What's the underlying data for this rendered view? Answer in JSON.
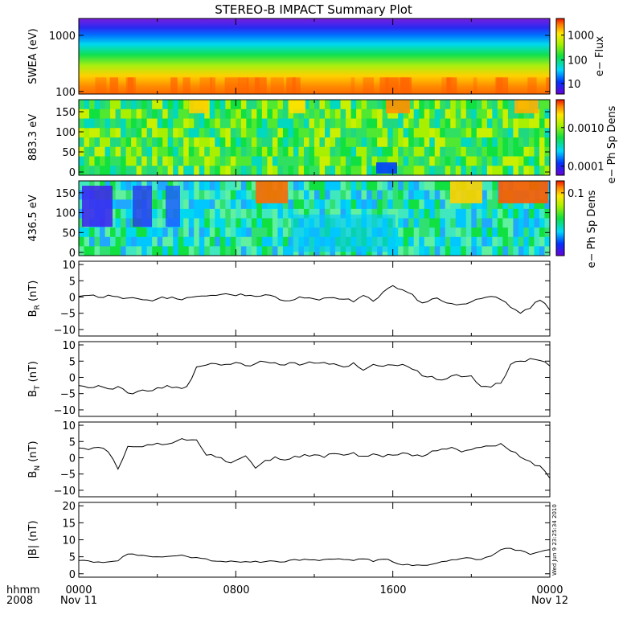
{
  "title": "STEREO-B IMPACT Summary Plot",
  "x_axis": {
    "ticks": [
      "0000",
      "0800",
      "1600",
      "0000"
    ],
    "date_ticks": [
      "Nov 11",
      "Nov 12"
    ],
    "corner_top": "hhmm",
    "corner_bottom": "2008"
  },
  "timestamp": "Wed Jun  9 23:25:34 2010",
  "chart_data": [
    {
      "type": "heatmap",
      "ylabel": "SWEA (eV)",
      "yscale": "log",
      "ylim": [
        90,
        2000
      ],
      "yticks": [
        "1000",
        "100"
      ],
      "colorbar": {
        "label": "e− Flux",
        "ticks": [
          "1000",
          "100",
          "10"
        ],
        "scale": "log"
      }
    },
    {
      "type": "heatmap",
      "ylabel": "883.3 eV",
      "ylim": [
        -8,
        180
      ],
      "yticks": [
        "150",
        "100",
        "50",
        "0"
      ],
      "colorbar": {
        "label": "e− Ph Sp Dens",
        "ticks": [
          "0.0010",
          "0.0001"
        ],
        "scale": "log"
      }
    },
    {
      "type": "heatmap",
      "ylabel": "436.5 eV",
      "ylim": [
        -8,
        180
      ],
      "yticks": [
        "150",
        "100",
        "50",
        "0"
      ],
      "colorbar": {
        "label": "e− Ph Sp Dens",
        "ticks": [
          "0.1"
        ],
        "scale": "log"
      }
    },
    {
      "type": "line",
      "ylabel": {
        "main": "B",
        "sub": "R",
        "unit": " (nT)"
      },
      "ylim": [
        -12,
        11
      ],
      "yticks": [
        "10",
        "5",
        "0",
        "−5",
        "−10"
      ],
      "xlim": [
        0,
        24
      ],
      "x": [
        0,
        0.5,
        1,
        1.5,
        2,
        2.5,
        3,
        3.5,
        4,
        4.5,
        5,
        5.5,
        6,
        6.5,
        7,
        7.5,
        8,
        8.5,
        9,
        9.5,
        10,
        10.5,
        11,
        11.5,
        12,
        12.5,
        13,
        13.5,
        14,
        14.5,
        15,
        15.5,
        16,
        16.5,
        17,
        17.5,
        18,
        18.5,
        19,
        19.5,
        20,
        20.5,
        21,
        21.5,
        22,
        22.5,
        23,
        23.5,
        24
      ],
      "y": [
        0.2,
        0.5,
        -0.1,
        0.6,
        0.1,
        -0.3,
        -0.5,
        -0.9,
        -0.6,
        -0.5,
        -0.6,
        -0.2,
        0.2,
        0.3,
        0.5,
        1,
        0.4,
        0.4,
        0.2,
        0.7,
        0.1,
        -1.2,
        -0.8,
        -0.3,
        -0.6,
        -0.3,
        -0.2,
        -0.7,
        -1.5,
        0.5,
        -1.3,
        1.5,
        3.5,
        2.2,
        0.8,
        -1.8,
        -0.6,
        -1.2,
        -2,
        -2.2,
        -1.5,
        -0.5,
        0.2,
        -0.8,
        -3.2,
        -5,
        -3.5,
        -1,
        -4
      ]
    },
    {
      "type": "line",
      "ylabel": {
        "main": "B",
        "sub": "T",
        "unit": " (nT)"
      },
      "ylim": [
        -12,
        11
      ],
      "yticks": [
        "10",
        "5",
        "0",
        "−5",
        "−10"
      ],
      "xlim": [
        0,
        24
      ],
      "x": [
        0,
        0.5,
        1,
        1.5,
        2,
        2.5,
        3,
        3.5,
        4,
        4.5,
        5,
        5.5,
        6,
        6.5,
        7,
        7.5,
        8,
        8.5,
        9,
        9.5,
        10,
        10.5,
        11,
        11.5,
        12,
        12.5,
        13,
        13.5,
        14,
        14.5,
        15,
        15.5,
        16,
        16.5,
        17,
        17.5,
        18,
        18.5,
        19,
        19.5,
        20,
        20.5,
        21,
        21.5,
        22,
        22.5,
        23,
        23.5,
        24
      ],
      "y": [
        -2.5,
        -3.2,
        -2.5,
        -3.5,
        -2.8,
        -4.8,
        -4.3,
        -4.2,
        -3.2,
        -2.5,
        -3,
        -2.8,
        3.2,
        3.8,
        4.2,
        4,
        4.6,
        3.6,
        4.2,
        4.8,
        4.5,
        3.8,
        4.5,
        4.2,
        4.4,
        4.6,
        4.2,
        3.2,
        4.5,
        2.2,
        4,
        3.4,
        3.8,
        4,
        2.5,
        0.5,
        0.3,
        -0.8,
        0.5,
        0.2,
        0.5,
        -2.8,
        -3,
        -1.8,
        4,
        5,
        5.8,
        5.2,
        3.5
      ]
    },
    {
      "type": "line",
      "ylabel": {
        "main": "B",
        "sub": "N",
        "unit": " (nT)"
      },
      "ylim": [
        -12,
        11
      ],
      "yticks": [
        "10",
        "5",
        "0",
        "−5",
        "−10"
      ],
      "xlim": [
        0,
        24
      ],
      "x": [
        0,
        0.5,
        1,
        1.5,
        2,
        2.5,
        3,
        3.5,
        4,
        4.5,
        5,
        5.5,
        6,
        6.5,
        7,
        7.5,
        8,
        8.5,
        9,
        9.5,
        10,
        10.5,
        11,
        11.5,
        12,
        12.5,
        13,
        13.5,
        14,
        14.5,
        15,
        15.5,
        16,
        16.5,
        17,
        17.5,
        18,
        18.5,
        19,
        19.5,
        20,
        20.5,
        21,
        21.5,
        22,
        22.5,
        23,
        23.5,
        24
      ],
      "y": [
        3,
        2.5,
        3.2,
        1.8,
        -3.5,
        3.5,
        3.4,
        4,
        4.5,
        4.2,
        5.2,
        5.4,
        5.5,
        0.8,
        0.2,
        -1.2,
        -0.8,
        0.6,
        -3.2,
        -0.8,
        0.3,
        -0.7,
        0.5,
        1,
        0.9,
        0.1,
        1.3,
        0.8,
        1.6,
        0.5,
        1.2,
        0.3,
        0.8,
        1.5,
        0.6,
        0.4,
        2.1,
        2.7,
        3.2,
        1.8,
        2.5,
        3.2,
        3.6,
        4.4,
        2.1,
        0.2,
        -1.1,
        -2.5,
        -6.3
      ]
    },
    {
      "type": "line",
      "ylabel": {
        "main": "|B|",
        "sub": "",
        "unit": " (nT)"
      },
      "ylim": [
        -1,
        21
      ],
      "yticks": [
        "20",
        "15",
        "10",
        "5",
        "0"
      ],
      "xlim": [
        0,
        24
      ],
      "x": [
        0,
        0.5,
        1,
        1.5,
        2,
        2.5,
        3,
        3.5,
        4,
        4.5,
        5,
        5.5,
        6,
        6.5,
        7,
        7.5,
        8,
        8.5,
        9,
        9.5,
        10,
        10.5,
        11,
        11.5,
        12,
        12.5,
        13,
        13.5,
        14,
        14.5,
        15,
        15.5,
        16,
        16.5,
        17,
        17.5,
        18,
        18.5,
        19,
        19.5,
        20,
        20.5,
        21,
        21.5,
        22,
        22.5,
        23,
        23.5,
        24
      ],
      "y": [
        3.9,
        3.8,
        3.5,
        3.5,
        3.8,
        5.8,
        5.4,
        5.2,
        5,
        5.1,
        5.3,
        5.1,
        4.8,
        4.4,
        3.7,
        3.5,
        3.6,
        3.6,
        3.7,
        3.6,
        3.7,
        3.5,
        4.2,
        4.3,
        4.1,
        4.2,
        4.3,
        4.2,
        3.9,
        4.4,
        3.6,
        4.3,
        3.5,
        2.6,
        2.4,
        2.5,
        2.8,
        3.6,
        4.1,
        4.5,
        4.6,
        4.2,
        5.2,
        7.1,
        7.5,
        6.9,
        5.7,
        6.5,
        7.1
      ]
    }
  ]
}
